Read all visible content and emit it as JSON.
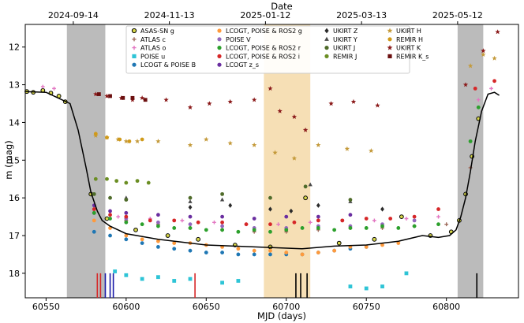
{
  "chart_data": {
    "type": "scatter",
    "xlabel": "MJD (days)",
    "ylabel": "m (mag)",
    "top_label": "Date",
    "xlim": [
      60537,
      60845
    ],
    "ylim": [
      18.65,
      11.4
    ],
    "y_inverted": true,
    "x_ticks": [
      60550,
      60600,
      60650,
      60700,
      60750,
      60800
    ],
    "y_ticks": [
      12,
      13,
      14,
      15,
      16,
      17,
      18
    ],
    "top_ticks": [
      {
        "x": 60567,
        "label": "2024-09-14"
      },
      {
        "x": 60627,
        "label": "2024-11-13"
      },
      {
        "x": 60687,
        "label": "2025-01-12"
      },
      {
        "x": 60747,
        "label": "2025-03-13"
      },
      {
        "x": 60807,
        "label": "2025-05-12"
      }
    ],
    "shaded_regions": [
      {
        "x0": 60563,
        "x1": 60587,
        "color": "#b4b4b4",
        "alpha": 0.9
      },
      {
        "x0": 60686,
        "x1": 60715,
        "color": "#f5d9a8",
        "alpha": 0.85
      },
      {
        "x0": 60807,
        "x1": 60823,
        "color": "#b4b4b4",
        "alpha": 0.9
      }
    ],
    "epoch_markers": [
      {
        "x": 60582,
        "color": "#d62728"
      },
      {
        "x": 60584,
        "color": "#d62728"
      },
      {
        "x": 60587,
        "color": "#1a1aa8"
      },
      {
        "x": 60590,
        "color": "#1a1aa8"
      },
      {
        "x": 60592,
        "color": "#1a1aa8"
      },
      {
        "x": 60643,
        "color": "#d62728"
      },
      {
        "x": 60706,
        "color": "#000000"
      },
      {
        "x": 60709,
        "color": "#000000"
      },
      {
        "x": 60713,
        "color": "#000000"
      },
      {
        "x": 60819,
        "color": "#000000"
      }
    ],
    "model_curve": {
      "color": "#000000",
      "x": [
        60537,
        60550,
        60565,
        60570,
        60575,
        60578,
        60582,
        60585,
        60590,
        60600,
        60620,
        60650,
        60680,
        60710,
        60730,
        60750,
        60770,
        60785,
        60795,
        60802,
        60806,
        60809,
        60812,
        60815,
        60818,
        60822,
        60826,
        60830,
        60833
      ],
      "y": [
        13.18,
        13.2,
        13.5,
        14.2,
        15.2,
        15.85,
        16.35,
        16.6,
        16.75,
        16.95,
        17.1,
        17.25,
        17.3,
        17.35,
        17.28,
        17.25,
        17.15,
        17.0,
        17.05,
        17.0,
        16.85,
        16.5,
        16.0,
        15.3,
        14.5,
        13.7,
        13.25,
        13.2,
        13.28
      ]
    },
    "series": [
      {
        "name": "ASAS-SN g",
        "color": "#d8d84a",
        "marker": "circle-ring",
        "x": [
          60538,
          60542,
          60548,
          60553,
          60558,
          60562,
          60578,
          60588,
          60606,
          60626,
          60645,
          60668,
          60690,
          60712,
          60733,
          60755,
          60772,
          60790,
          60803,
          60808,
          60812,
          60816,
          60820
        ],
        "y": [
          13.18,
          13.2,
          13.15,
          13.22,
          13.3,
          13.45,
          15.9,
          16.55,
          16.85,
          17.0,
          17.1,
          17.25,
          17.3,
          16.0,
          17.2,
          17.1,
          16.5,
          17.0,
          16.9,
          16.6,
          15.9,
          14.9,
          13.9
        ]
      },
      {
        "name": "ATLAS c",
        "color": "#9e6b5b",
        "marker": "plus",
        "x": [
          60580,
          60600,
          60620,
          60640,
          60660,
          60680,
          60700,
          60720,
          60740,
          60760,
          60780,
          60800,
          60815
        ],
        "y": [
          16.4,
          16.6,
          16.7,
          16.8,
          16.85,
          16.9,
          16.9,
          16.85,
          16.8,
          16.8,
          16.75,
          16.7,
          15.2
        ]
      },
      {
        "name": "ATLAS o",
        "color": "#e377c2",
        "marker": "plus",
        "x": [
          60548,
          60555,
          60580,
          60595,
          60615,
          60635,
          60655,
          60675,
          60695,
          60715,
          60735,
          60755,
          60775,
          60795,
          60820,
          60828
        ],
        "y": [
          13.05,
          13.1,
          16.3,
          16.5,
          16.55,
          16.6,
          16.65,
          16.7,
          16.7,
          16.65,
          16.6,
          16.6,
          16.55,
          16.5,
          13.4,
          13.1
        ]
      },
      {
        "name": "POISE u",
        "color": "#2ec4d6",
        "marker": "square",
        "x": [
          60593,
          60600,
          60610,
          60620,
          60630,
          60640,
          60660,
          60670,
          60740,
          60750,
          60760,
          60775
        ],
        "y": [
          17.95,
          18.05,
          18.15,
          18.1,
          18.2,
          18.15,
          18.25,
          18.2,
          18.35,
          18.4,
          18.35,
          18.0
        ]
      },
      {
        "name": "LCOGT & POISE B",
        "color": "#1f77b4",
        "marker": "circle",
        "x": [
          60580,
          60590,
          60600,
          60610,
          60620,
          60630,
          60640,
          60650,
          60660,
          60670,
          60680,
          60690,
          60700,
          60710,
          60720,
          60730,
          60740,
          60750
        ],
        "y": [
          16.9,
          17.0,
          17.1,
          17.2,
          17.3,
          17.35,
          17.4,
          17.45,
          17.45,
          17.5,
          17.5,
          17.5,
          17.5,
          17.5,
          17.45,
          17.4,
          17.35,
          17.3
        ]
      },
      {
        "name": "LCOGT, POISE & ROS2 g",
        "color": "#ff9a3c",
        "marker": "circle",
        "x": [
          60580,
          60590,
          60600,
          60610,
          60620,
          60630,
          60640,
          60650,
          60660,
          60670,
          60680,
          60690,
          60700,
          60710,
          60720,
          60730,
          60740,
          60750,
          60760,
          60770
        ],
        "y": [
          16.6,
          16.8,
          17.0,
          17.1,
          17.15,
          17.2,
          17.2,
          17.25,
          17.3,
          17.35,
          17.4,
          17.4,
          17.45,
          17.5,
          17.45,
          17.4,
          17.3,
          17.3,
          17.25,
          17.2
        ]
      },
      {
        "name": "POISE V",
        "color": "#9467bd",
        "marker": "circle",
        "x": [
          60580,
          60600,
          60620,
          60640,
          60660,
          60680,
          60700,
          60720,
          60740,
          60760,
          60780
        ],
        "y": [
          16.4,
          16.55,
          16.65,
          16.7,
          16.75,
          16.8,
          16.8,
          16.75,
          16.75,
          16.7,
          16.6
        ]
      },
      {
        "name": "LCOGT, POISE & ROS2 r",
        "color": "#2ca02c",
        "marker": "circle",
        "x": [
          60580,
          60590,
          60600,
          60610,
          60620,
          60630,
          60640,
          60650,
          60660,
          60670,
          60680,
          60690,
          60700,
          60710,
          60720,
          60730,
          60740,
          60750,
          60760,
          60770,
          60780,
          60795,
          60815,
          60820
        ],
        "y": [
          16.4,
          16.55,
          16.65,
          16.7,
          16.75,
          16.8,
          16.8,
          16.85,
          16.85,
          16.9,
          16.85,
          16.9,
          16.85,
          16.8,
          16.8,
          16.85,
          16.8,
          16.8,
          16.75,
          16.8,
          16.75,
          16.7,
          14.5,
          13.6
        ]
      },
      {
        "name": "LCOGT, POISE & ROS2 i",
        "color": "#d62728",
        "marker": "circle",
        "x": [
          60580,
          60590,
          60600,
          60615,
          60630,
          60645,
          60660,
          60675,
          60690,
          60705,
          60720,
          60735,
          60750,
          60765,
          60780,
          60795,
          60818,
          60830
        ],
        "y": [
          16.3,
          16.45,
          16.5,
          16.6,
          16.6,
          16.65,
          16.65,
          16.7,
          16.7,
          16.65,
          16.6,
          16.6,
          16.55,
          16.55,
          16.5,
          16.3,
          13.1,
          12.9
        ]
      },
      {
        "name": "LCOGT z_s",
        "color": "#6a2ea0",
        "marker": "circle",
        "x": [
          60580,
          60590,
          60600,
          60620,
          60640,
          60660,
          60680,
          60700,
          60720,
          60740
        ],
        "y": [
          16.2,
          16.35,
          16.4,
          16.45,
          16.5,
          16.5,
          16.55,
          16.5,
          16.5,
          16.45
        ]
      },
      {
        "name": "UKIRT Z",
        "color": "#2a2a2a",
        "marker": "diamond",
        "x": [
          60640,
          60665,
          60690,
          60703,
          60720,
          60760
        ],
        "y": [
          16.25,
          16.2,
          16.3,
          16.35,
          16.2,
          16.3
        ]
      },
      {
        "name": "UKIRT Y",
        "color": "#4a4a4a",
        "marker": "triangle",
        "x": [
          60600,
          60640,
          60660,
          60715,
          60740
        ],
        "y": [
          16.0,
          16.1,
          16.05,
          15.65,
          16.1
        ]
      },
      {
        "name": "UKIRT J",
        "color": "#4f6b2a",
        "marker": "circle",
        "x": [
          60580,
          60590,
          60600,
          60640,
          60660,
          60690,
          60712,
          60740
        ],
        "y": [
          15.9,
          16.0,
          16.05,
          16.0,
          15.9,
          16.0,
          15.7,
          16.05
        ]
      },
      {
        "name": "REMIR J",
        "color": "#6b8e23",
        "marker": "circle",
        "x": [
          60581,
          60588,
          60594,
          60600,
          60607,
          60614
        ],
        "y": [
          15.5,
          15.5,
          15.55,
          15.6,
          15.55,
          15.6
        ]
      },
      {
        "name": "UKIRT H",
        "color": "#c49a3a",
        "marker": "star",
        "x": [
          60581,
          60588,
          60595,
          60600,
          60607,
          60620,
          60640,
          60650,
          60665,
          60680,
          60693,
          60705,
          60720,
          60738,
          60753,
          60815,
          60823,
          60830
        ],
        "y": [
          14.35,
          14.4,
          14.45,
          14.5,
          14.5,
          14.5,
          14.6,
          14.45,
          14.55,
          14.6,
          14.8,
          14.95,
          14.6,
          14.7,
          14.75,
          12.5,
          12.2,
          12.3
        ]
      },
      {
        "name": "REMIR H",
        "color": "#d09a1a",
        "marker": "circle",
        "x": [
          60581,
          60588,
          60596,
          60602,
          60610
        ],
        "y": [
          14.3,
          14.4,
          14.45,
          14.5,
          14.45
        ]
      },
      {
        "name": "UKIRT K",
        "color": "#8b1a1a",
        "marker": "star",
        "x": [
          60581,
          60588,
          60597,
          60604,
          60610,
          60625,
          60640,
          60652,
          60665,
          60680,
          60690,
          60696,
          60705,
          60712,
          60728,
          60742,
          60757,
          60812,
          60823,
          60832
        ],
        "y": [
          13.25,
          13.3,
          13.35,
          13.4,
          13.35,
          13.4,
          13.6,
          13.5,
          13.45,
          13.4,
          13.1,
          13.7,
          13.85,
          14.2,
          13.5,
          13.45,
          13.55,
          13.0,
          12.1,
          11.6
        ]
      },
      {
        "name": "REMIR K_s",
        "color": "#6b0f0f",
        "marker": "square",
        "x": [
          60583,
          60590,
          60598,
          60604,
          60612
        ],
        "y": [
          13.25,
          13.3,
          13.35,
          13.35,
          13.4
        ]
      }
    ],
    "legend": {
      "placement": "top-center",
      "columns": [
        [
          "ASAS-SN g",
          "ATLAS c",
          "ATLAS o",
          "POISE u",
          "LCOGT & POISE B"
        ],
        [
          "LCOGT, POISE & ROS2 g",
          "POISE V",
          "LCOGT, POISE & ROS2 r",
          "LCOGT, POISE & ROS2 i",
          "LCOGT z_s"
        ],
        [
          "UKIRT Z",
          "UKIRT Y",
          "UKIRT J",
          "REMIR J"
        ],
        [
          "UKIRT H",
          "REMIR H",
          "UKIRT K",
          "REMIR K_s"
        ]
      ]
    }
  }
}
